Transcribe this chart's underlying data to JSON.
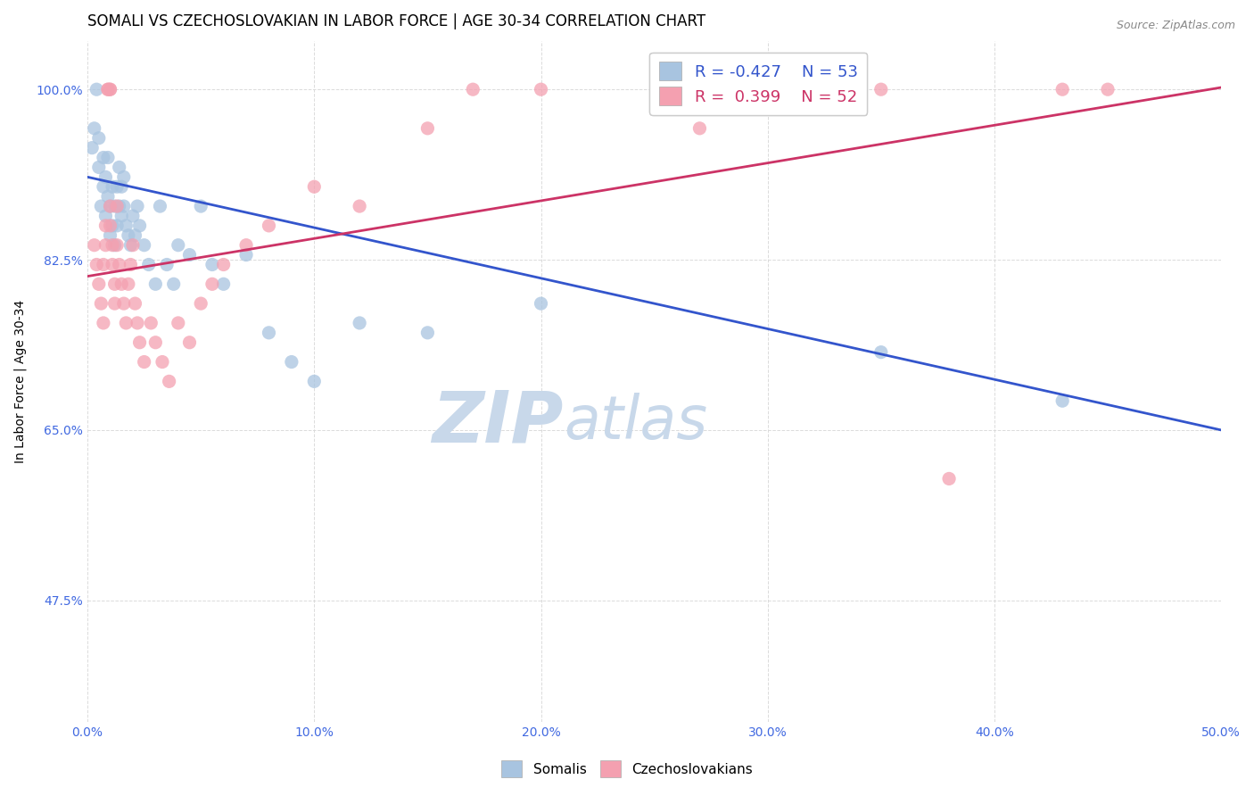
{
  "title": "SOMALI VS CZECHOSLOVAKIAN IN LABOR FORCE | AGE 30-34 CORRELATION CHART",
  "source": "Source: ZipAtlas.com",
  "ylabel": "In Labor Force | Age 30-34",
  "xlim": [
    0.0,
    0.5
  ],
  "ylim": [
    0.35,
    1.05
  ],
  "yticks": [
    0.475,
    0.65,
    0.825,
    1.0
  ],
  "ytick_labels": [
    "47.5%",
    "65.0%",
    "82.5%",
    "100.0%"
  ],
  "xticks": [
    0.0,
    0.1,
    0.2,
    0.3,
    0.4,
    0.5
  ],
  "xtick_labels": [
    "0.0%",
    "10.0%",
    "20.0%",
    "30.0%",
    "40.0%",
    "50.0%"
  ],
  "somali_color": "#a8c4e0",
  "czechoslovakian_color": "#f4a0b0",
  "trend_somali_color": "#3355cc",
  "trend_czech_color": "#cc3366",
  "R_somali": -0.427,
  "N_somali": 53,
  "R_czech": 0.399,
  "N_czech": 52,
  "watermark_zip": "ZIP",
  "watermark_atlas": "atlas",
  "watermark_color": "#c8d8ea",
  "somali_x": [
    0.002,
    0.003,
    0.004,
    0.005,
    0.005,
    0.006,
    0.007,
    0.007,
    0.008,
    0.008,
    0.009,
    0.009,
    0.01,
    0.01,
    0.011,
    0.011,
    0.012,
    0.012,
    0.013,
    0.013,
    0.014,
    0.014,
    0.015,
    0.015,
    0.016,
    0.016,
    0.017,
    0.018,
    0.019,
    0.02,
    0.021,
    0.022,
    0.023,
    0.025,
    0.027,
    0.03,
    0.032,
    0.035,
    0.038,
    0.04,
    0.045,
    0.05,
    0.055,
    0.06,
    0.07,
    0.08,
    0.09,
    0.1,
    0.12,
    0.15,
    0.2,
    0.35,
    0.43
  ],
  "somali_y": [
    0.94,
    0.96,
    1.0,
    0.92,
    0.95,
    0.88,
    0.9,
    0.93,
    0.87,
    0.91,
    0.89,
    0.93,
    0.85,
    0.88,
    0.86,
    0.9,
    0.84,
    0.88,
    0.86,
    0.9,
    0.88,
    0.92,
    0.87,
    0.9,
    0.88,
    0.91,
    0.86,
    0.85,
    0.84,
    0.87,
    0.85,
    0.88,
    0.86,
    0.84,
    0.82,
    0.8,
    0.88,
    0.82,
    0.8,
    0.84,
    0.83,
    0.88,
    0.82,
    0.8,
    0.83,
    0.75,
    0.72,
    0.7,
    0.76,
    0.75,
    0.78,
    0.73,
    0.68
  ],
  "czech_x": [
    0.003,
    0.004,
    0.005,
    0.006,
    0.007,
    0.007,
    0.008,
    0.008,
    0.009,
    0.009,
    0.01,
    0.01,
    0.01,
    0.01,
    0.011,
    0.011,
    0.012,
    0.012,
    0.013,
    0.013,
    0.014,
    0.015,
    0.016,
    0.017,
    0.018,
    0.019,
    0.02,
    0.021,
    0.022,
    0.023,
    0.025,
    0.028,
    0.03,
    0.033,
    0.036,
    0.04,
    0.045,
    0.05,
    0.055,
    0.06,
    0.07,
    0.08,
    0.1,
    0.12,
    0.15,
    0.17,
    0.2,
    0.27,
    0.35,
    0.38,
    0.43,
    0.45
  ],
  "czech_y": [
    0.84,
    0.82,
    0.8,
    0.78,
    0.76,
    0.82,
    0.84,
    0.86,
    1.0,
    1.0,
    1.0,
    1.0,
    0.88,
    0.86,
    0.84,
    0.82,
    0.8,
    0.78,
    0.88,
    0.84,
    0.82,
    0.8,
    0.78,
    0.76,
    0.8,
    0.82,
    0.84,
    0.78,
    0.76,
    0.74,
    0.72,
    0.76,
    0.74,
    0.72,
    0.7,
    0.76,
    0.74,
    0.78,
    0.8,
    0.82,
    0.84,
    0.86,
    0.9,
    0.88,
    0.96,
    1.0,
    1.0,
    0.96,
    1.0,
    0.6,
    1.0,
    1.0
  ],
  "background_color": "#ffffff",
  "grid_color": "#d8d8d8",
  "tick_color": "#4169e1",
  "title_fontsize": 12,
  "axis_label_fontsize": 10,
  "tick_fontsize": 10
}
